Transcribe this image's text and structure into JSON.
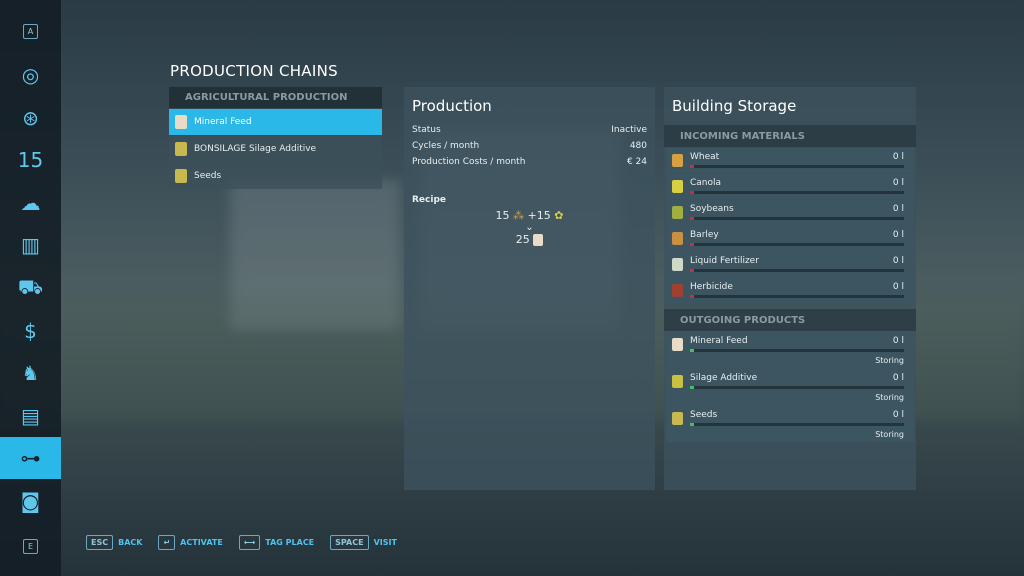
{
  "sidebar": {
    "top_key": "A",
    "bottom_key": "E",
    "items": [
      {
        "icon": "map-icon",
        "glyph": "◎"
      },
      {
        "icon": "steering-wheel-icon",
        "glyph": "⊛"
      },
      {
        "icon": "calendar-icon",
        "glyph": "15"
      },
      {
        "icon": "weather-icon",
        "glyph": "☁"
      },
      {
        "icon": "statistics-icon",
        "glyph": "▥"
      },
      {
        "icon": "tractor-icon",
        "glyph": "⛟"
      },
      {
        "icon": "finance-icon",
        "glyph": "$"
      },
      {
        "icon": "animals-icon",
        "glyph": "♞"
      },
      {
        "icon": "contracts-icon",
        "glyph": "▤"
      },
      {
        "icon": "production-icon",
        "glyph": "⊶",
        "active": true
      },
      {
        "icon": "help-icon",
        "glyph": "◙"
      }
    ]
  },
  "title": "PRODUCTION CHAINS",
  "chains": {
    "header": "AGRICULTURAL PRODUCTION",
    "items": [
      {
        "label": "Mineral Feed",
        "selected": true
      },
      {
        "label": "BONSILAGE Silage Additive"
      },
      {
        "label": "Seeds"
      }
    ]
  },
  "production": {
    "title": "Production",
    "rows": [
      {
        "label": "Status",
        "value": "Inactive"
      },
      {
        "label": "Cycles / month",
        "value": "480"
      },
      {
        "label": "Production Costs / month",
        "value": "€ 24"
      }
    ],
    "recipe_label": "Recipe",
    "inputs": [
      {
        "amount": "15",
        "icon": "wheat-icon"
      },
      {
        "amount": "+15",
        "icon": "canola-icon"
      }
    ],
    "output": {
      "amount": "25",
      "icon": "mineral-feed-icon"
    }
  },
  "storage": {
    "title": "Building Storage",
    "incoming_header": "INCOMING MATERIALS",
    "outgoing_header": "OUTGOING PRODUCTS",
    "incoming": [
      {
        "name": "Wheat",
        "value": "0 l",
        "color": "#d8a040"
      },
      {
        "name": "Canola",
        "value": "0 l",
        "color": "#d8d040"
      },
      {
        "name": "Soybeans",
        "value": "0 l",
        "color": "#a0b040"
      },
      {
        "name": "Barley",
        "value": "0 l",
        "color": "#c89040"
      },
      {
        "name": "Liquid Fertilizer",
        "value": "0 l",
        "color": "#d0d8c8"
      },
      {
        "name": "Herbicide",
        "value": "0 l",
        "color": "#a04030"
      }
    ],
    "outgoing": [
      {
        "name": "Mineral Feed",
        "value": "0 l",
        "status": "Storing",
        "color": "#e8dcc8"
      },
      {
        "name": "Silage Additive",
        "value": "0 l",
        "status": "Storing",
        "color": "#c8c040"
      },
      {
        "name": "Seeds",
        "value": "0 l",
        "status": "Storing",
        "color": "#c8b850"
      }
    ],
    "fill_level": 0,
    "incoming_bar_color": "#c0304a",
    "outgoing_bar_color": "#40c060"
  },
  "footer": [
    {
      "key": "ESC",
      "label": "BACK"
    },
    {
      "key": "↵",
      "label": "ACTIVATE"
    },
    {
      "key": "⟷",
      "label": "TAG PLACE"
    },
    {
      "key": "SPACE",
      "label": "VISIT"
    }
  ]
}
